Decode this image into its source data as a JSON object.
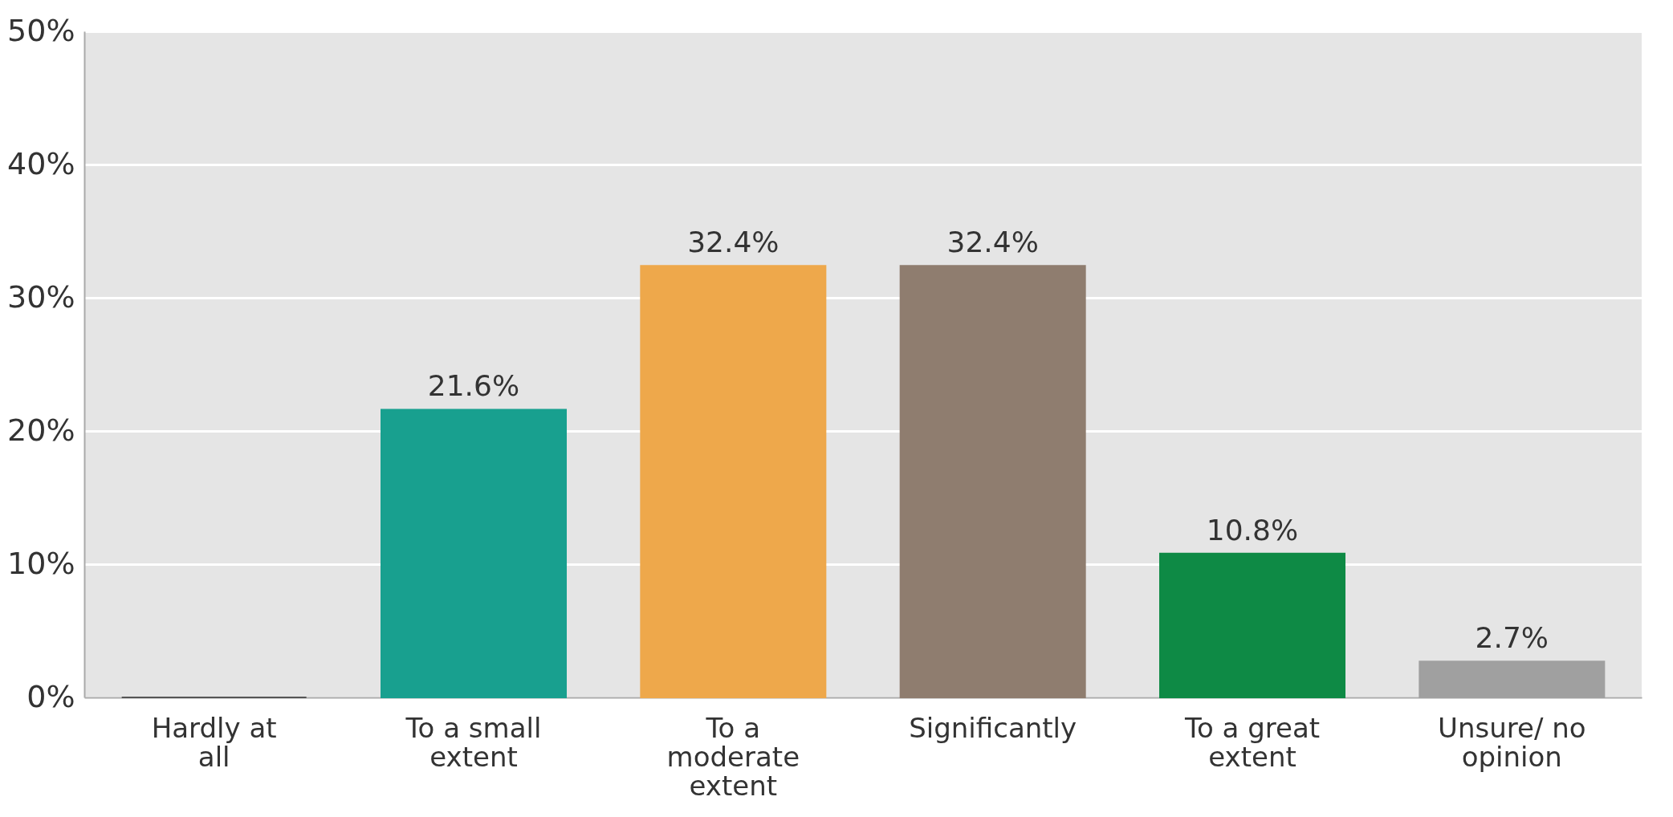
{
  "chart_data": {
    "type": "bar",
    "categories": [
      "Hardly at all",
      "To a small extent",
      "To a moderate extent",
      "Significantly",
      "To a great extent",
      "Unsure/ no opinion"
    ],
    "values": [
      0,
      21.6,
      32.4,
      32.4,
      10.8,
      2.7
    ],
    "colors": [
      "#555555",
      "#18a08f",
      "#eea84b",
      "#8f7d6f",
      "#0e8a45",
      "#a0a0a0"
    ],
    "value_labels": [
      null,
      "21.6%",
      "32.4%",
      "32.4%",
      "10.8%",
      "2.7%"
    ],
    "ylim": [
      0,
      50
    ],
    "yticks": [
      {
        "value": 0,
        "label": "0%"
      },
      {
        "value": 10,
        "label": "10%"
      },
      {
        "value": 20,
        "label": "20%"
      },
      {
        "value": 30,
        "label": "30%"
      },
      {
        "value": 40,
        "label": "40%"
      },
      {
        "value": 50,
        "label": "50%"
      }
    ],
    "grid": "y"
  }
}
